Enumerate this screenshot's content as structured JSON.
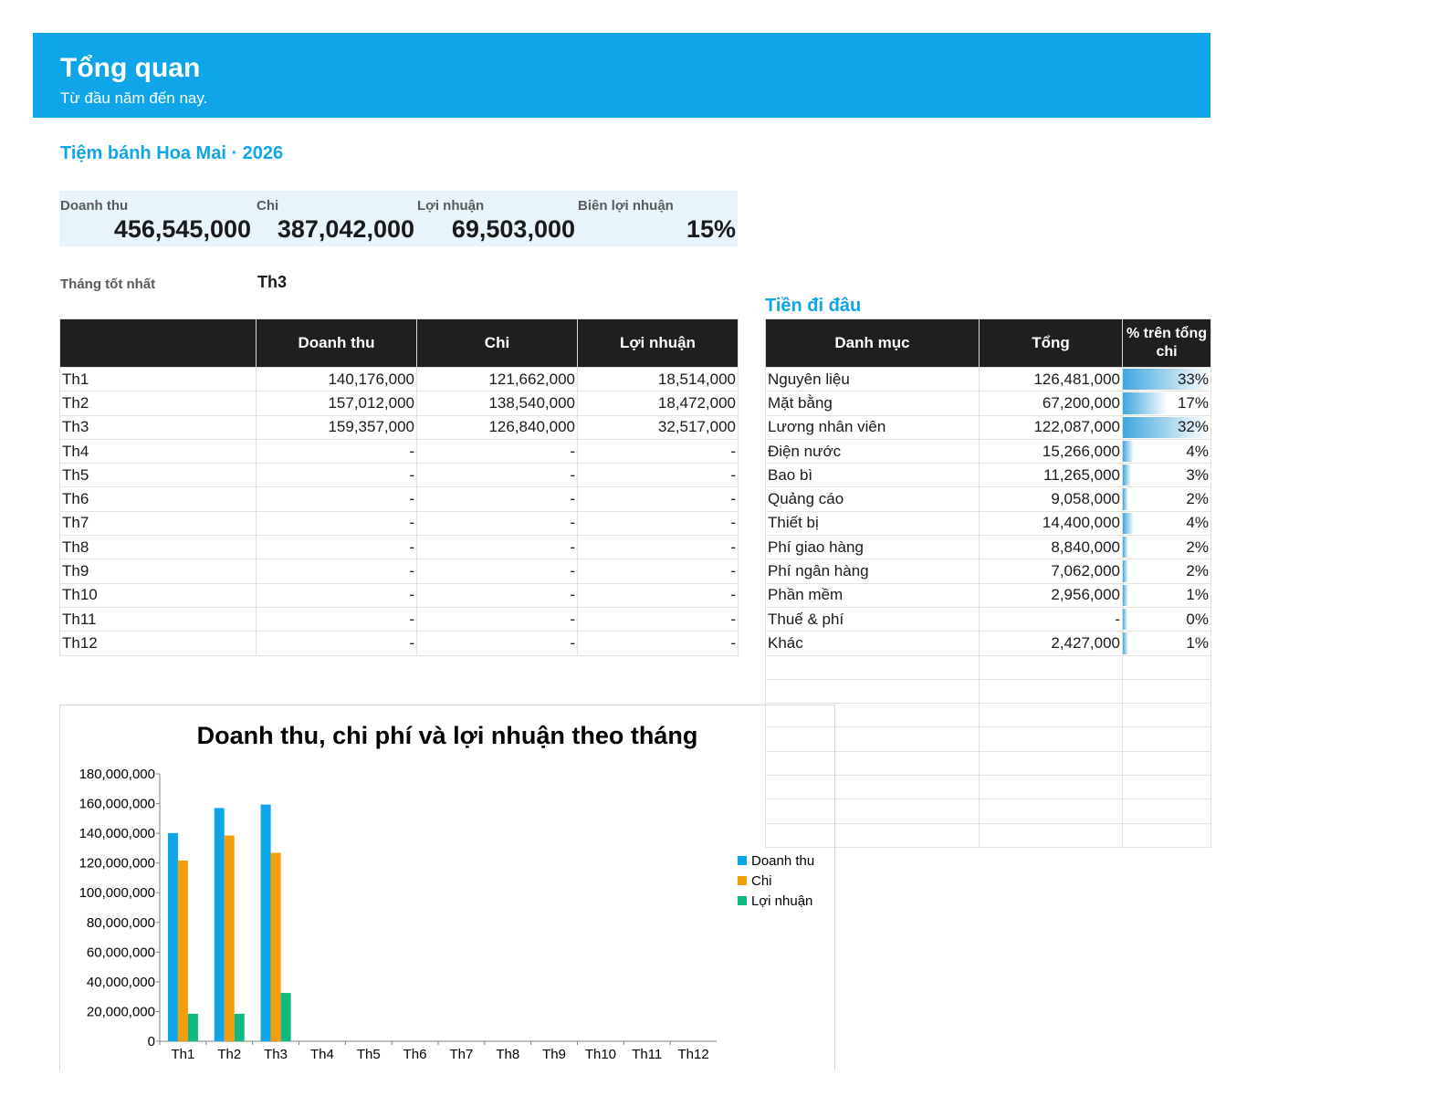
{
  "header": {
    "title": "Tổng quan",
    "subtitle": "Từ đầu năm đến nay."
  },
  "company": "Tiệm bánh Hoa Mai · 2026",
  "kpis": [
    {
      "label": "Doanh thu",
      "value": "456,545,000"
    },
    {
      "label": "Chi",
      "value": "387,042,000"
    },
    {
      "label": "Lợi nhuận",
      "value": "69,503,000"
    },
    {
      "label": "Biên lợi nhuận",
      "value": "15%"
    }
  ],
  "best_month": {
    "label": "Tháng tốt nhất",
    "value": "Th3"
  },
  "monthly_table": {
    "headers": [
      "",
      "Doanh thu",
      "Chi",
      "Lợi nhuận"
    ],
    "rows": [
      [
        "Th1",
        "140,176,000",
        "121,662,000",
        "18,514,000"
      ],
      [
        "Th2",
        "157,012,000",
        "138,540,000",
        "18,472,000"
      ],
      [
        "Th3",
        "159,357,000",
        "126,840,000",
        "32,517,000"
      ],
      [
        "Th4",
        "-",
        "-",
        "-"
      ],
      [
        "Th5",
        "-",
        "-",
        "-"
      ],
      [
        "Th6",
        "-",
        "-",
        "-"
      ],
      [
        "Th7",
        "-",
        "-",
        "-"
      ],
      [
        "Th8",
        "-",
        "-",
        "-"
      ],
      [
        "Th9",
        "-",
        "-",
        "-"
      ],
      [
        "Th10",
        "-",
        "-",
        "-"
      ],
      [
        "Th11",
        "-",
        "-",
        "-"
      ],
      [
        "Th12",
        "-",
        "-",
        "-"
      ]
    ]
  },
  "spending": {
    "title": "Tiền đi đâu",
    "headers": [
      "Danh mục",
      "Tổng",
      "% trên tổng chi"
    ],
    "rows": [
      {
        "category": "Nguyên liệu",
        "total": "126,481,000",
        "pct": "33%",
        "fraction": 0.33
      },
      {
        "category": "Mặt bằng",
        "total": "67,200,000",
        "pct": "17%",
        "fraction": 0.17
      },
      {
        "category": "Lương nhân viên",
        "total": "122,087,000",
        "pct": "32%",
        "fraction": 0.32
      },
      {
        "category": "Điện nước",
        "total": "15,266,000",
        "pct": "4%",
        "fraction": 0.04
      },
      {
        "category": "Bao bì",
        "total": "11,265,000",
        "pct": "3%",
        "fraction": 0.03
      },
      {
        "category": "Quảng cáo",
        "total": "9,058,000",
        "pct": "2%",
        "fraction": 0.02
      },
      {
        "category": "Thiết bị",
        "total": "14,400,000",
        "pct": "4%",
        "fraction": 0.04
      },
      {
        "category": "Phí giao hàng",
        "total": "8,840,000",
        "pct": "2%",
        "fraction": 0.02
      },
      {
        "category": "Phí ngân hàng",
        "total": "7,062,000",
        "pct": "2%",
        "fraction": 0.02
      },
      {
        "category": "Phần mềm",
        "total": "2,956,000",
        "pct": "1%",
        "fraction": 0.01
      },
      {
        "category": "Thuế & phí",
        "total": "-",
        "pct": "0%",
        "fraction": 0.0
      },
      {
        "category": "Khác",
        "total": "2,427,000",
        "pct": "1%",
        "fraction": 0.01
      }
    ],
    "empty_rows": 8,
    "bar_color": "#3fa6de"
  },
  "chart_data": {
    "type": "bar",
    "title": "Doanh thu, chi phí và lợi nhuận theo tháng",
    "categories": [
      "Th1",
      "Th2",
      "Th3",
      "Th4",
      "Th5",
      "Th6",
      "Th7",
      "Th8",
      "Th9",
      "Th10",
      "Th11",
      "Th12"
    ],
    "series": [
      {
        "name": "Doanh thu",
        "color": "#0ea5e9",
        "values": [
          140176000,
          157012000,
          159357000,
          0,
          0,
          0,
          0,
          0,
          0,
          0,
          0,
          0
        ]
      },
      {
        "name": "Chi",
        "color": "#f59e0b",
        "values": [
          121662000,
          138540000,
          126840000,
          0,
          0,
          0,
          0,
          0,
          0,
          0,
          0,
          0
        ]
      },
      {
        "name": "Lợi nhuận",
        "color": "#10b981",
        "values": [
          18514000,
          18472000,
          32517000,
          0,
          0,
          0,
          0,
          0,
          0,
          0,
          0,
          0
        ]
      }
    ],
    "yticks": [
      "0",
      "20,000,000",
      "40,000,000",
      "60,000,000",
      "80,000,000",
      "100,000,000",
      "120,000,000",
      "140,000,000",
      "160,000,000",
      "180,000,000"
    ],
    "ylim": [
      0,
      180000000
    ],
    "legend": "right",
    "grid": false
  }
}
